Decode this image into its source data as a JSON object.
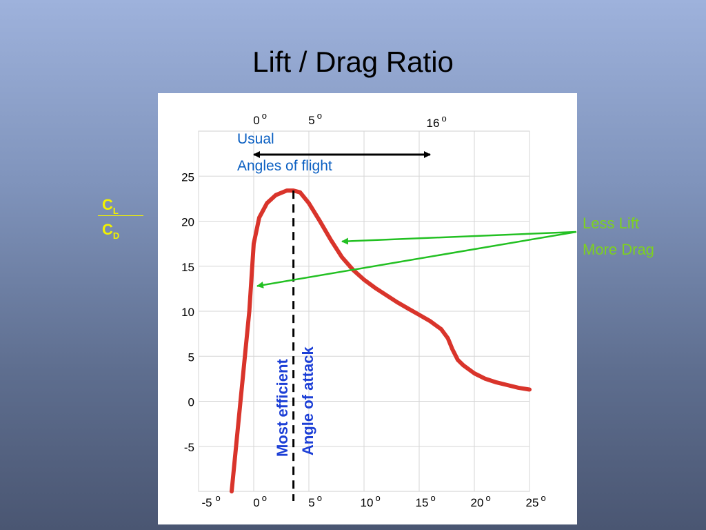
{
  "slide": {
    "title": "Lift / Drag Ratio"
  },
  "y_axis_label": {
    "numerator": "C",
    "numerator_sub": "L",
    "denominator": "C",
    "denominator_sub": "D",
    "color": "#f2f200"
  },
  "callout": {
    "line1": "Less Lift",
    "line2": "More Drag",
    "color": "#7dd11f",
    "arrow_color": "#22c022"
  },
  "usual_range": {
    "line1": "Usual",
    "line2": "Angles of flight",
    "from_deg": 0,
    "to_deg": 16,
    "color": "#0a5fc2"
  },
  "efficient_marker": {
    "line1": "Most efficient",
    "line2": "Angle of attack",
    "x": 3.6,
    "color": "#1c3fd6"
  },
  "chart_data": {
    "type": "line",
    "title": "",
    "xlabel": "",
    "ylabel": "CL/CD",
    "xlim": [
      -5,
      25
    ],
    "ylim": [
      -10,
      30
    ],
    "grid": true,
    "x_ticks": [
      -5,
      0,
      5,
      10,
      15,
      20,
      25
    ],
    "x_tick_labels": [
      "-5",
      "0",
      "5",
      "10",
      "15",
      "20",
      "25"
    ],
    "y_ticks": [
      -5,
      0,
      5,
      10,
      15,
      20,
      25
    ],
    "y_tick_labels": [
      "-5",
      "0",
      "5",
      "10",
      "15",
      "20",
      "25"
    ],
    "top_ticks": [
      0,
      5,
      16
    ],
    "top_tick_labels": [
      "0",
      "5",
      "16"
    ],
    "series": [
      {
        "color": "#d9342b",
        "x": [
          -2.0,
          -1.2,
          -0.4,
          0.0,
          0.5,
          1.2,
          2.0,
          3.0,
          3.6,
          4.2,
          5.0,
          6.0,
          7.0,
          8.0,
          9.0,
          10.0,
          11.0,
          12.0,
          13.0,
          14.0,
          15.0,
          16.0,
          17.0,
          17.6,
          18.0,
          18.5,
          19.0,
          20.0,
          21.0,
          22.0,
          23.0,
          24.0,
          25.0
        ],
        "y": [
          -10.0,
          0.0,
          10.0,
          17.5,
          20.4,
          22.0,
          22.9,
          23.4,
          23.4,
          23.2,
          22.0,
          20.0,
          17.9,
          16.0,
          14.6,
          13.5,
          12.6,
          11.8,
          11.0,
          10.3,
          9.6,
          8.9,
          8.0,
          7.0,
          5.8,
          4.6,
          4.0,
          3.1,
          2.5,
          2.1,
          1.8,
          1.5,
          1.3
        ]
      }
    ]
  }
}
